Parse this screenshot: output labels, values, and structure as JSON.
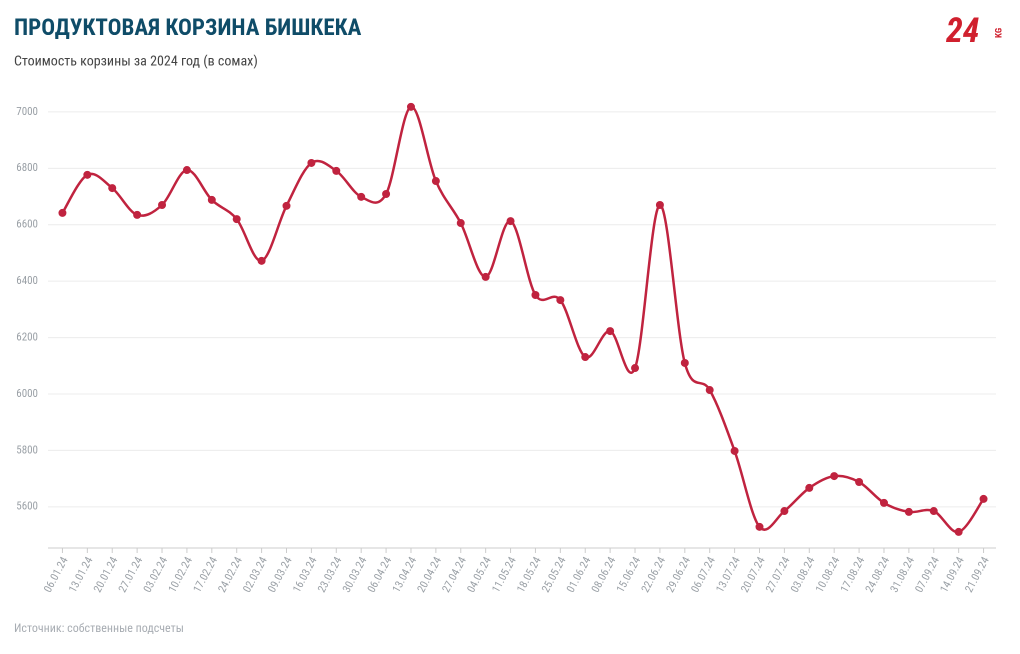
{
  "chart_data": {
    "type": "line",
    "title": "ПРОДУКТОВАЯ КОРЗИНА БИШКЕКА",
    "subtitle": "Стоимость корзины за 2024 год (в сомах)",
    "source": "Источник: собственные подсчеты",
    "logo": "24",
    "logo_sub": "KG",
    "categories": [
      "06.01.24",
      "13.01.24",
      "20.01.24",
      "27.01.24",
      "03.02.24",
      "10.02.24",
      "17.02.24",
      "24.02.24",
      "02.03.24",
      "09.03.24",
      "16.03.24",
      "23.03.24",
      "30.03.24",
      "06.04.24",
      "13.04.24",
      "20.04.24",
      "27.04.24",
      "04.05.24",
      "11.05.24",
      "18.05.24",
      "25.05.24",
      "01.06.24",
      "08.06.24",
      "15.06.24",
      "22.06.24",
      "29.06.24",
      "06.07.24",
      "13.07.24",
      "20.07.24",
      "27.07.24",
      "03.08.24",
      "10.08.24",
      "17.08.24",
      "24.08.24",
      "31.08.24",
      "07.09.24",
      "14.09.24",
      "21.09.24"
    ],
    "values": [
      6642,
      6777,
      6730,
      6635,
      6670,
      6794,
      6688,
      6620,
      6472,
      6667,
      6819,
      6791,
      6699,
      6709,
      7018,
      6755,
      6606,
      6415,
      6613,
      6351,
      6333,
      6131,
      6223,
      6092,
      6670,
      6110,
      6014,
      5798,
      5529,
      5585,
      5667,
      5709,
      5688,
      5614,
      5582,
      5585,
      5511,
      5628
    ],
    "color": "#c0233f",
    "ylim": [
      5454,
      7060
    ],
    "yticks": [
      5600,
      5800,
      6000,
      6200,
      6400,
      6600,
      6800,
      7000
    ],
    "grid": true
  }
}
